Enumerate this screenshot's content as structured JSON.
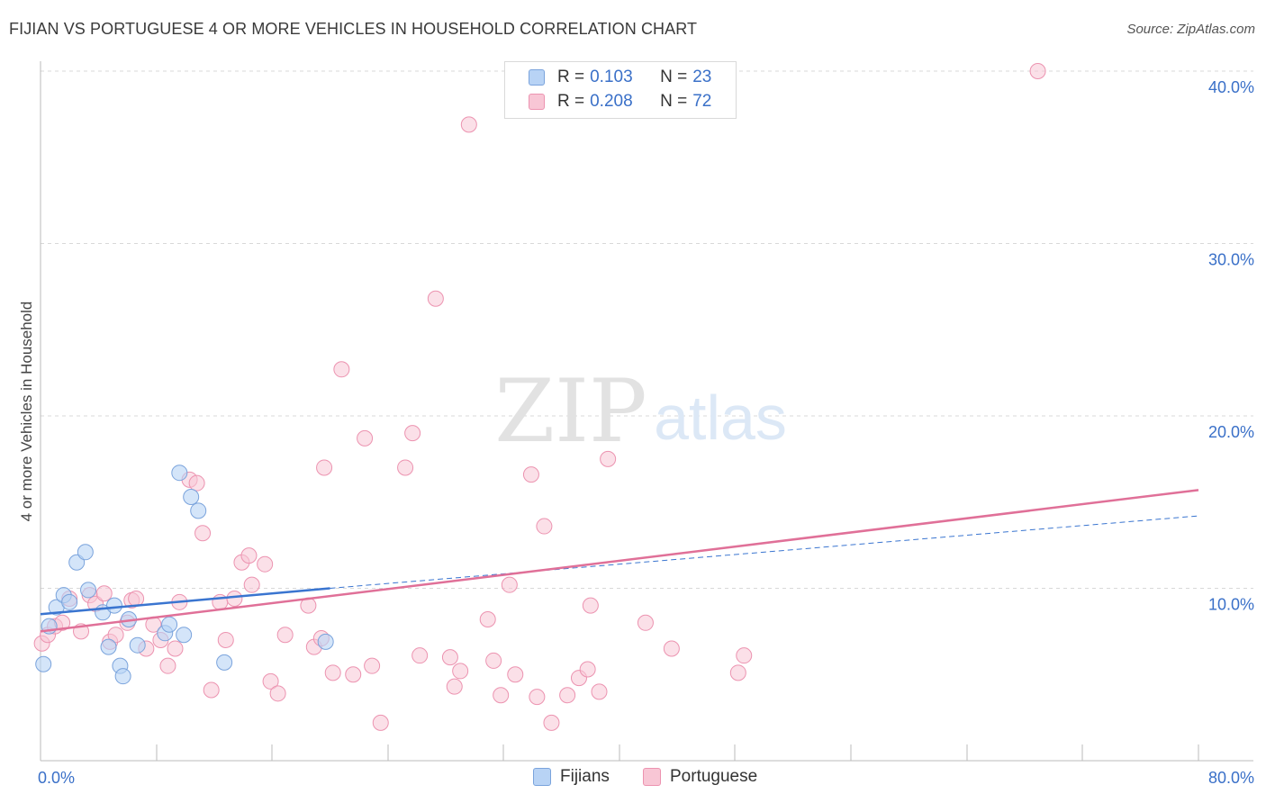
{
  "header": {
    "title": "FIJIAN VS PORTUGUESE 4 OR MORE VEHICLES IN HOUSEHOLD CORRELATION CHART",
    "source": "Source: ZipAtlas.com"
  },
  "watermark": {
    "zip": "ZIP",
    "atlas": "atlas"
  },
  "legend_top": {
    "rows": [
      {
        "r_label": "R =",
        "r_value": "0.103",
        "n_label": "N =",
        "n_value": "23"
      },
      {
        "r_label": "R =",
        "r_value": "0.208",
        "n_label": "N =",
        "n_value": "72"
      }
    ]
  },
  "legend_bottom": {
    "items": [
      {
        "label": "Fijians"
      },
      {
        "label": "Portuguese"
      }
    ]
  },
  "colors": {
    "fijian_fill": "#b8d3f5",
    "fijian_stroke": "#7aa3dc",
    "fijian_line": "#3a75d0",
    "portuguese_fill": "#f8c6d5",
    "portuguese_stroke": "#ec93b0",
    "portuguese_line": "#e07098",
    "tick_label": "#3a70c8",
    "grid": "#d8d8d8",
    "axis": "#bbbbbb"
  },
  "chart_data": {
    "type": "scatter",
    "title": "FIJIAN VS PORTUGUESE 4 OR MORE VEHICLES IN HOUSEHOLD CORRELATION CHART",
    "xlabel": "",
    "ylabel": "4 or more Vehicles in Household",
    "xlim": [
      0,
      80
    ],
    "ylim": [
      0,
      42
    ],
    "x_tick_labels": [
      "0.0%",
      "80.0%"
    ],
    "y_ticks": [
      10,
      20,
      30,
      40
    ],
    "y_tick_labels": [
      "10.0%",
      "20.0%",
      "30.0%",
      "40.0%"
    ],
    "grid": true,
    "legend_position": "top-center",
    "series": [
      {
        "name": "Fijians",
        "r": 0.103,
        "n": 23,
        "trend": {
          "x0": 0,
          "y0": 8.5,
          "x1": 20,
          "y1": 10.0,
          "dashed_to_x": 80,
          "dashed_to_y": 14.2
        },
        "points": [
          [
            0.2,
            5.6
          ],
          [
            0.6,
            7.8
          ],
          [
            1.1,
            8.9
          ],
          [
            1.6,
            9.6
          ],
          [
            2.0,
            9.2
          ],
          [
            2.5,
            11.5
          ],
          [
            3.1,
            12.1
          ],
          [
            3.3,
            9.9
          ],
          [
            4.3,
            8.6
          ],
          [
            4.7,
            6.6
          ],
          [
            5.1,
            9.0
          ],
          [
            5.5,
            5.5
          ],
          [
            5.7,
            4.9
          ],
          [
            6.1,
            8.2
          ],
          [
            6.7,
            6.7
          ],
          [
            8.6,
            7.4
          ],
          [
            8.9,
            7.9
          ],
          [
            9.6,
            16.7
          ],
          [
            9.9,
            7.3
          ],
          [
            10.4,
            15.3
          ],
          [
            10.9,
            14.5
          ],
          [
            12.7,
            5.7
          ],
          [
            19.7,
            6.9
          ]
        ]
      },
      {
        "name": "Portuguese",
        "r": 0.208,
        "n": 72,
        "trend": {
          "x0": 0,
          "y0": 7.5,
          "x1": 80,
          "y1": 15.7
        },
        "points": [
          [
            0.1,
            6.8
          ],
          [
            0.5,
            7.3
          ],
          [
            1.0,
            7.8
          ],
          [
            1.5,
            8.0
          ],
          [
            2.0,
            9.4
          ],
          [
            2.8,
            7.5
          ],
          [
            3.4,
            9.6
          ],
          [
            3.8,
            9.1
          ],
          [
            4.4,
            9.7
          ],
          [
            4.8,
            6.9
          ],
          [
            5.2,
            7.3
          ],
          [
            6.0,
            8.0
          ],
          [
            6.3,
            9.3
          ],
          [
            6.6,
            9.4
          ],
          [
            7.3,
            6.5
          ],
          [
            7.8,
            7.9
          ],
          [
            8.3,
            7.0
          ],
          [
            8.8,
            5.5
          ],
          [
            9.3,
            6.5
          ],
          [
            9.6,
            9.2
          ],
          [
            10.3,
            16.3
          ],
          [
            10.8,
            16.1
          ],
          [
            11.2,
            13.2
          ],
          [
            11.8,
            4.1
          ],
          [
            12.4,
            9.2
          ],
          [
            12.8,
            7.0
          ],
          [
            13.4,
            9.4
          ],
          [
            13.9,
            11.5
          ],
          [
            14.4,
            11.9
          ],
          [
            14.6,
            10.2
          ],
          [
            15.5,
            11.4
          ],
          [
            15.9,
            4.6
          ],
          [
            16.4,
            3.9
          ],
          [
            16.9,
            7.3
          ],
          [
            18.5,
            9.0
          ],
          [
            18.9,
            6.6
          ],
          [
            19.4,
            7.1
          ],
          [
            19.6,
            17.0
          ],
          [
            20.2,
            5.1
          ],
          [
            20.8,
            22.7
          ],
          [
            21.6,
            5.0
          ],
          [
            22.4,
            18.7
          ],
          [
            22.9,
            5.5
          ],
          [
            23.5,
            2.2
          ],
          [
            25.2,
            17.0
          ],
          [
            25.7,
            19.0
          ],
          [
            26.2,
            6.1
          ],
          [
            27.3,
            26.8
          ],
          [
            28.3,
            6.0
          ],
          [
            28.6,
            4.3
          ],
          [
            29.0,
            5.2
          ],
          [
            29.6,
            36.9
          ],
          [
            30.9,
            8.2
          ],
          [
            31.3,
            5.8
          ],
          [
            31.8,
            3.8
          ],
          [
            32.4,
            10.2
          ],
          [
            32.8,
            5.0
          ],
          [
            33.9,
            16.6
          ],
          [
            34.3,
            3.7
          ],
          [
            34.8,
            13.6
          ],
          [
            35.3,
            2.2
          ],
          [
            36.4,
            3.8
          ],
          [
            37.2,
            4.8
          ],
          [
            37.8,
            5.3
          ],
          [
            38.0,
            9.0
          ],
          [
            38.6,
            4.0
          ],
          [
            39.2,
            17.5
          ],
          [
            41.8,
            8.0
          ],
          [
            43.6,
            6.5
          ],
          [
            48.2,
            5.1
          ],
          [
            48.6,
            6.1
          ],
          [
            68.9,
            40.0
          ]
        ]
      }
    ]
  }
}
